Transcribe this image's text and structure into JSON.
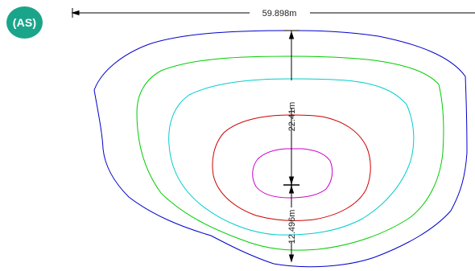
{
  "badge": {
    "label": "(AS)",
    "color": "#1aa58a"
  },
  "dimensions": {
    "width": "59.898m",
    "upper": "22.41m",
    "lower": "12.496m"
  },
  "contours": [
    {
      "name": "outer-contour",
      "color": "#0000cc"
    },
    {
      "name": "second-contour",
      "color": "#00cc00"
    },
    {
      "name": "third-contour",
      "color": "#00cccc"
    },
    {
      "name": "fourth-contour",
      "color": "#cc0000"
    },
    {
      "name": "inner-contour",
      "color": "#cc00cc"
    }
  ]
}
